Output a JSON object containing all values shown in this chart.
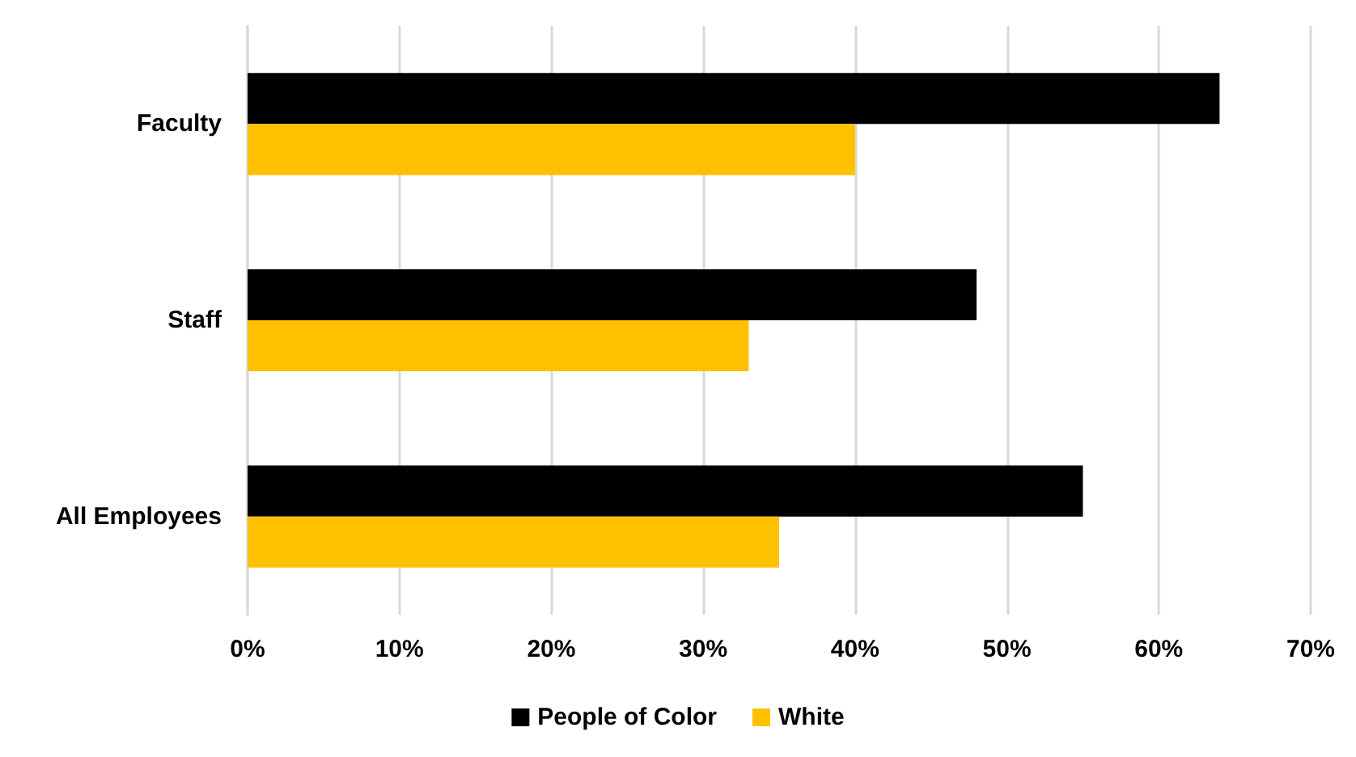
{
  "chart_data": {
    "type": "bar",
    "orientation": "horizontal",
    "categories": [
      "Faculty",
      "Staff",
      "All Employees"
    ],
    "series": [
      {
        "name": "People of Color",
        "color": "#000000",
        "values": [
          64,
          48,
          55
        ]
      },
      {
        "name": "White",
        "color": "#ffc000",
        "values": [
          40,
          33,
          35
        ]
      }
    ],
    "xlim": [
      0,
      70
    ],
    "xticks": [
      {
        "value": 0,
        "label": "0%"
      },
      {
        "value": 10,
        "label": "10%"
      },
      {
        "value": 20,
        "label": "20%"
      },
      {
        "value": 30,
        "label": "30%"
      },
      {
        "value": 40,
        "label": "40%"
      },
      {
        "value": 50,
        "label": "50%"
      },
      {
        "value": 60,
        "label": "60%"
      },
      {
        "value": 70,
        "label": "70%"
      }
    ],
    "grid": "x",
    "legend": "bottom"
  }
}
